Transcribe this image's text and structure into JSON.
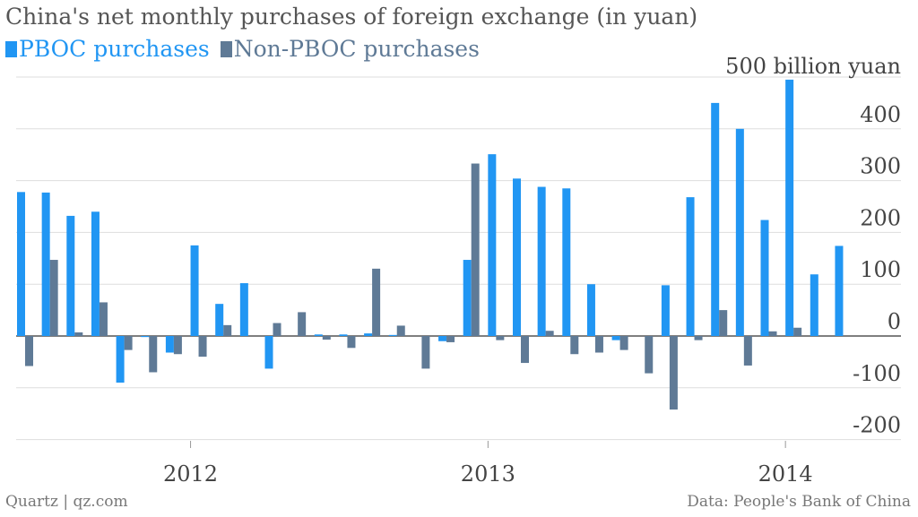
{
  "chart_data": {
    "type": "bar",
    "title": "China's net monthly purchases of foreign exchange (in yuan)",
    "unit_label": "500 billion yuan",
    "ylim": [
      -200,
      500
    ],
    "yticks": [
      -200,
      -100,
      0,
      100,
      200,
      300,
      400
    ],
    "ytick_labels": [
      "-200",
      "-100",
      "0",
      "100",
      "200",
      "300",
      "400"
    ],
    "xlabels": [
      {
        "label": "2012",
        "index": 7
      },
      {
        "label": "2013",
        "index": 19
      },
      {
        "label": "2014",
        "index": 31
      }
    ],
    "legend_placement": "top-left",
    "grid": true,
    "categories": [
      "Jun 2011",
      "Jul 2011",
      "Aug 2011",
      "Sep 2011",
      "Oct 2011",
      "Nov 2011",
      "Dec 2011",
      "Jan 2012",
      "Feb 2012",
      "Mar 2012",
      "Apr 2012",
      "May 2012",
      "Jun 2012",
      "Jul 2012",
      "Aug 2012",
      "Sep 2012",
      "Oct 2012",
      "Nov 2012",
      "Dec 2012",
      "Jan 2013",
      "Feb 2013",
      "Mar 2013",
      "Apr 2013",
      "May 2013",
      "Jun 2013",
      "Jul 2013",
      "Aug 2013",
      "Sep 2013",
      "Oct 2013",
      "Nov 2013",
      "Dec 2013",
      "Jan 2014",
      "Feb 2014",
      "Mar 2014"
    ],
    "series": [
      {
        "name": "PBOC purchases",
        "color": "#2196f3",
        "values": [
          278,
          277,
          232,
          240,
          -90,
          -2,
          -32,
          175,
          62,
          102,
          -63,
          0,
          3,
          3,
          5,
          2,
          0,
          -10,
          147,
          351,
          304,
          288,
          285,
          100,
          -8,
          0,
          98,
          268,
          450,
          400,
          224,
          495,
          119,
          174
        ]
      },
      {
        "name": "Non-PBOC purchases",
        "color": "#5f7a96",
        "values": [
          -58,
          147,
          7,
          65,
          -27,
          -70,
          -35,
          -40,
          21,
          0,
          25,
          46,
          -7,
          -23,
          130,
          20,
          -63,
          -12,
          333,
          -8,
          -52,
          10,
          -35,
          -32,
          -27,
          -72,
          -142,
          -8,
          50,
          -57,
          9,
          16,
          0,
          0
        ]
      }
    ]
  },
  "legend": {
    "items": [
      {
        "label": "PBOC purchases",
        "color": "#2196f3"
      },
      {
        "label": "Non-PBOC purchases",
        "color": "#5f7a96"
      }
    ]
  },
  "footer": {
    "left": "Quartz | qz.com",
    "right": "Data: People's Bank of China"
  }
}
